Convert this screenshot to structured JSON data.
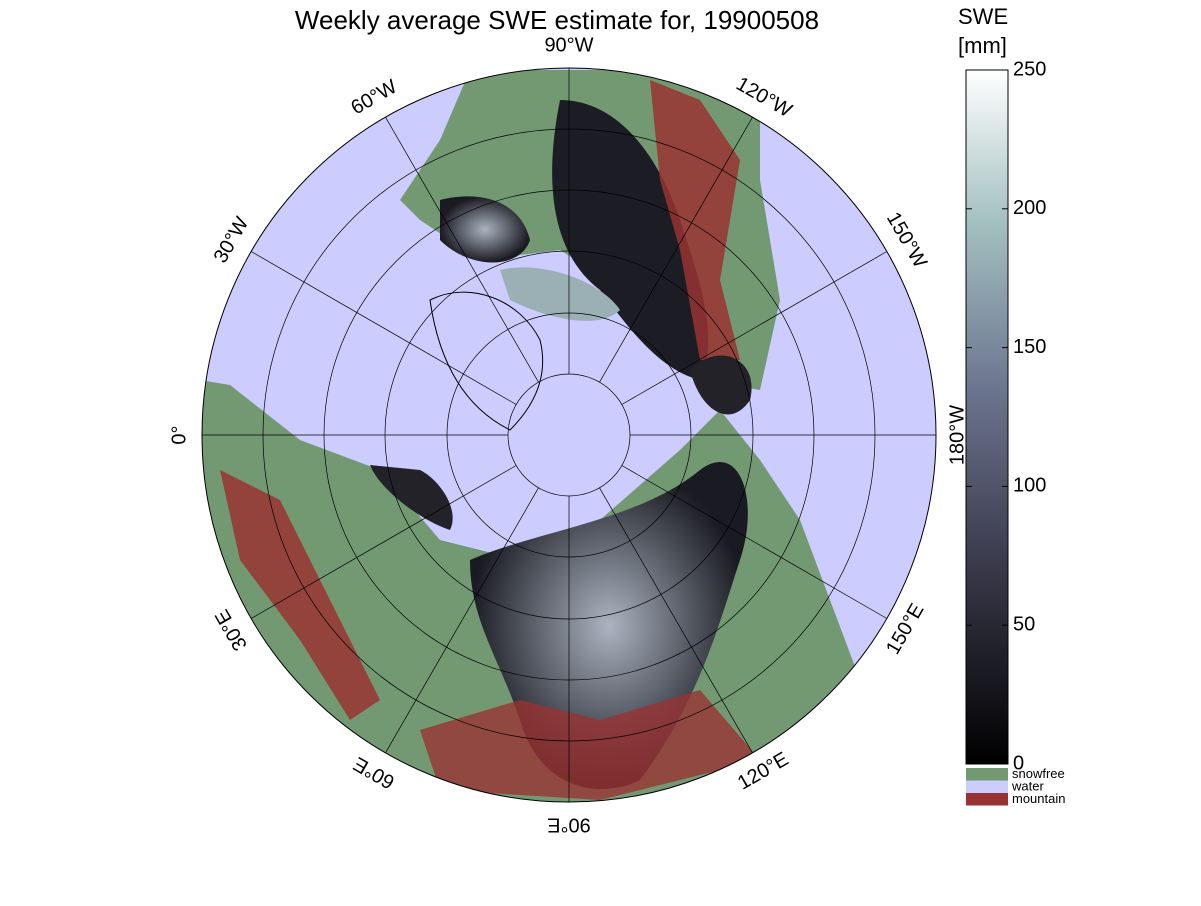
{
  "title": "Weekly average SWE estimate for, 19900508",
  "map": {
    "longitude_labels": [
      {
        "lon": -90,
        "label": "90°W"
      },
      {
        "lon": -120,
        "label": "120°W"
      },
      {
        "lon": -150,
        "label": "150°W"
      },
      {
        "lon": 180,
        "label": "180°W"
      },
      {
        "lon": 150,
        "label": "150°E"
      },
      {
        "lon": 120,
        "label": "120°E"
      },
      {
        "lon": 90,
        "label": "90°E"
      },
      {
        "lon": 60,
        "label": "60°E"
      },
      {
        "lon": 30,
        "label": "30°E"
      },
      {
        "lon": 0,
        "label": "0°"
      },
      {
        "lon": -30,
        "label": "30°W"
      },
      {
        "lon": -60,
        "label": "60°W"
      }
    ]
  },
  "colorbar": {
    "label": [
      "SWE",
      "[mm]"
    ],
    "lim": [
      0,
      250
    ],
    "ticks": [
      0,
      50,
      100,
      150,
      200,
      250
    ]
  },
  "legend": [
    {
      "name": "snowfree",
      "color": "#739973"
    },
    {
      "name": "water",
      "color": "#ccccff"
    },
    {
      "name": "mountain",
      "color": "#993333"
    }
  ]
}
